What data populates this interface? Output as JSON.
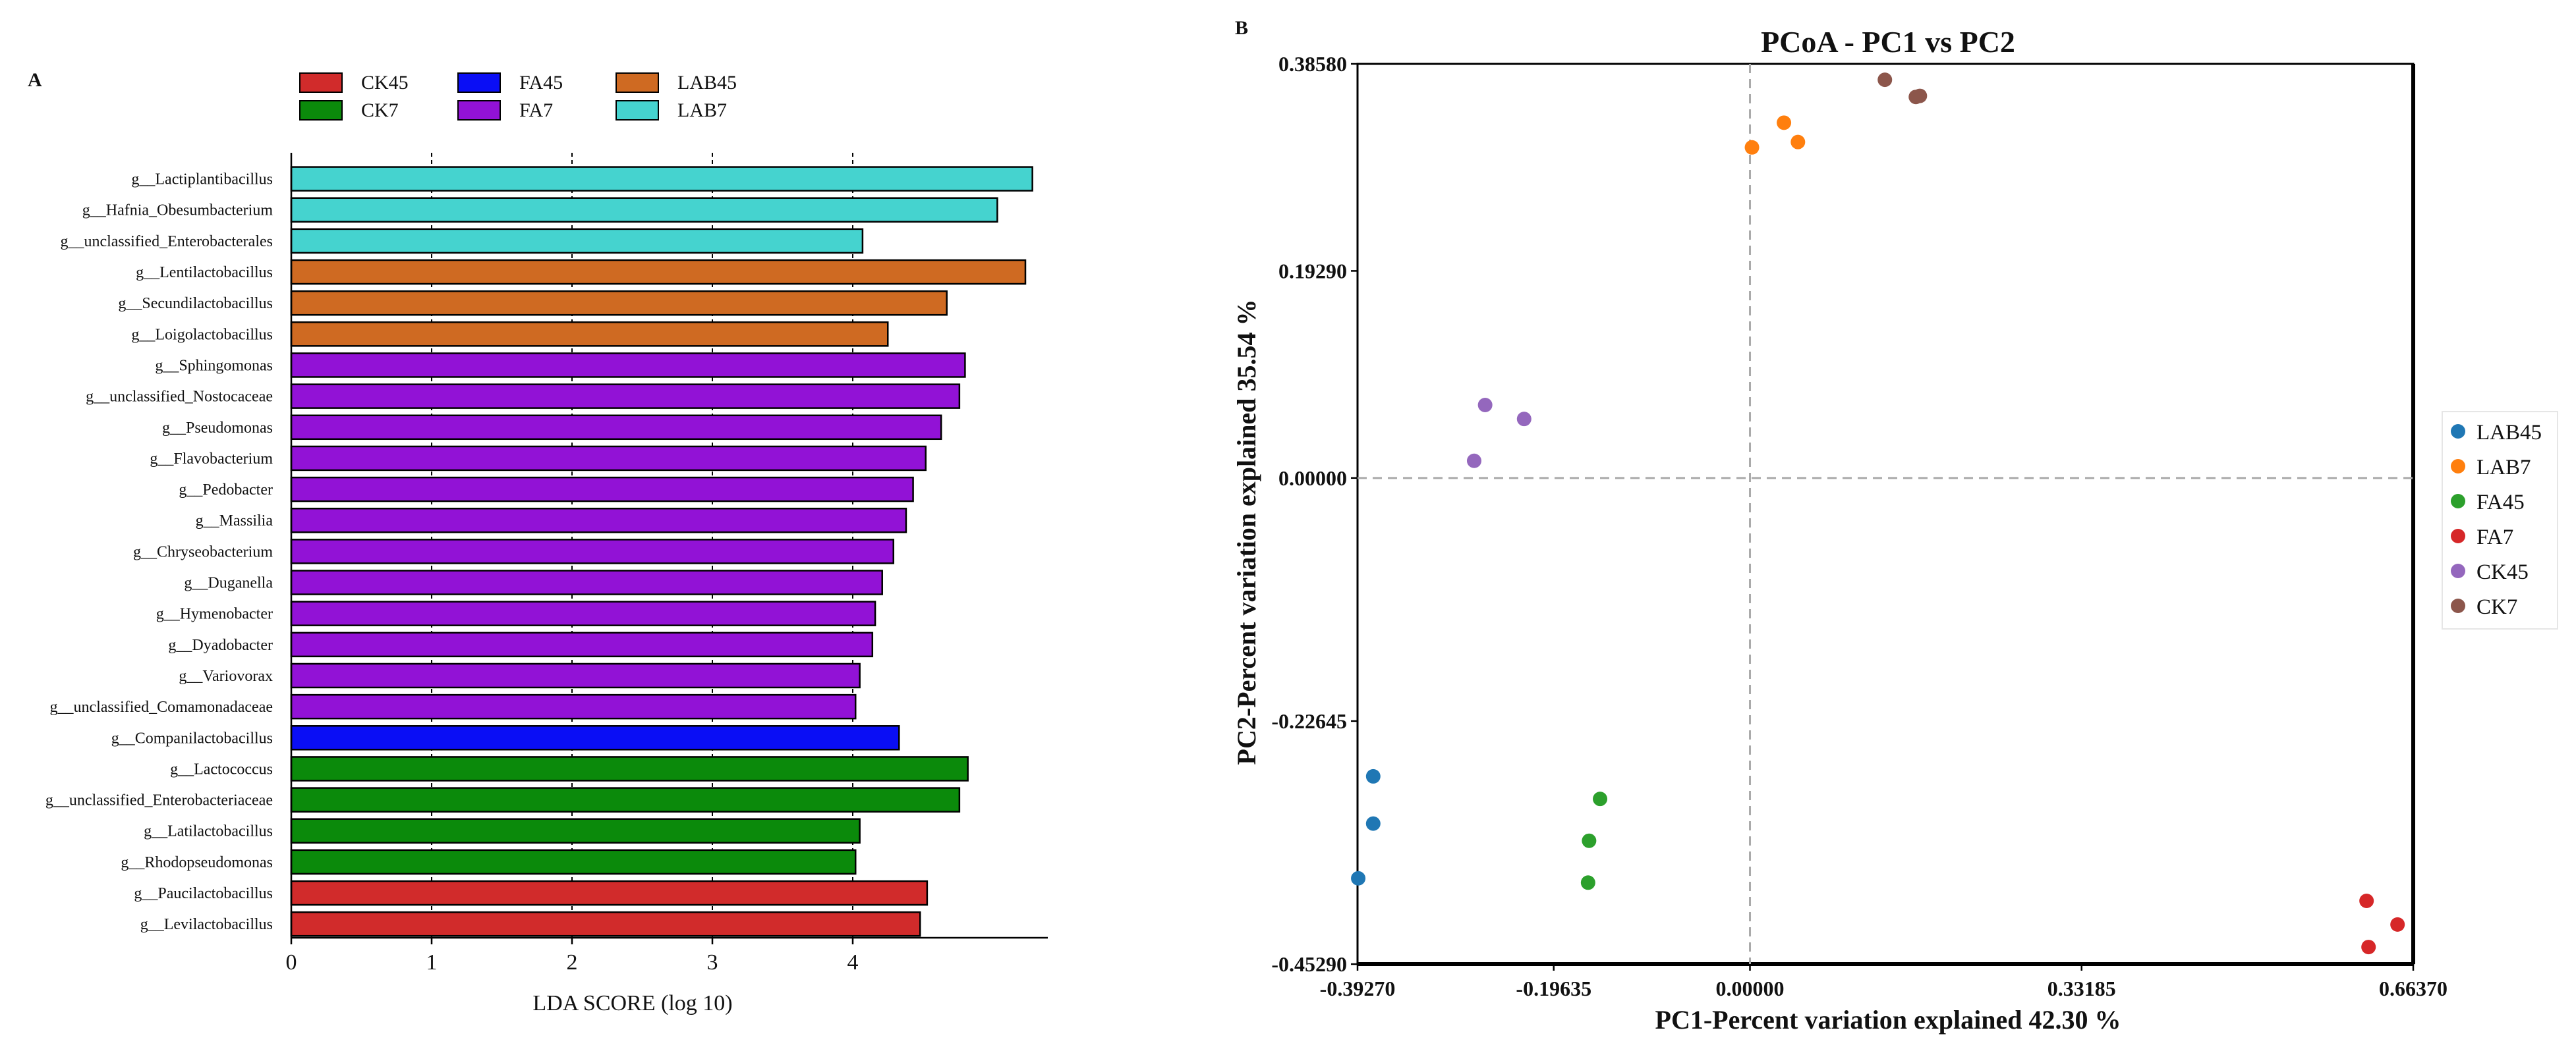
{
  "panel_a": {
    "label": "A",
    "legend": [
      {
        "name": "CK45",
        "color": "#d12b2b"
      },
      {
        "name": "FA45",
        "color": "#0a0ef5"
      },
      {
        "name": "LAB45",
        "color": "#cf6a22"
      },
      {
        "name": "CK7",
        "color": "#0b8a0b"
      },
      {
        "name": "FA7",
        "color": "#9212d6"
      },
      {
        "name": "LAB7",
        "color": "#45d3cf"
      }
    ]
  },
  "panel_b": {
    "label": "B",
    "legend": [
      {
        "name": "LAB45",
        "color": "#1f77b4"
      },
      {
        "name": "LAB7",
        "color": "#ff7f0e"
      },
      {
        "name": "FA45",
        "color": "#2ca02c"
      },
      {
        "name": "FA7",
        "color": "#d62728"
      },
      {
        "name": "CK45",
        "color": "#9467bd"
      },
      {
        "name": "CK7",
        "color": "#8c564b"
      }
    ]
  },
  "chart_data": [
    {
      "type": "bar",
      "orientation": "horizontal",
      "title": "",
      "xlabel": "LDA SCORE (log 10)",
      "ylabel": "",
      "xlim": [
        0,
        5.3
      ],
      "xticks": [
        0,
        1,
        2,
        3,
        4
      ],
      "grid": "vertical dashed at 1, 2, 3, 4",
      "categories": [
        "g__Lactiplantibacillus",
        "g__Hafnia_Obesumbacterium",
        "g__unclassified_Enterobacterales",
        "g__Lentilactobacillus",
        "g__Secundilactobacillus",
        "g__Loigolactobacillus",
        "g__Sphingomonas",
        "g__unclassified_Nostocaceae",
        "g__Pseudomonas",
        "g__Flavobacterium",
        "g__Pedobacter",
        "g__Massilia",
        "g__Chryseobacterium",
        "g__Duganella",
        "g__Hymenobacter",
        "g__Dyadobacter",
        "g__Variovorax",
        "g__unclassified_Comamonadaceae",
        "g__Companilactobacillus",
        "g__Lactococcus",
        "g__unclassified_Enterobacteriaceae",
        "g__Latilactobacillus",
        "g__Rhodopseudomonas",
        "g__Paucilactobacillus",
        "g__Levilactobacillus"
      ],
      "values": [
        5.28,
        5.03,
        4.07,
        5.23,
        4.67,
        4.25,
        4.8,
        4.76,
        4.63,
        4.52,
        4.43,
        4.38,
        4.29,
        4.21,
        4.16,
        4.14,
        4.05,
        4.02,
        4.33,
        4.82,
        4.76,
        4.05,
        4.02,
        4.53,
        4.48
      ],
      "groups": [
        "LAB7",
        "LAB7",
        "LAB7",
        "LAB45",
        "LAB45",
        "LAB45",
        "FA7",
        "FA7",
        "FA7",
        "FA7",
        "FA7",
        "FA7",
        "FA7",
        "FA7",
        "FA7",
        "FA7",
        "FA7",
        "FA7",
        "FA45",
        "CK7",
        "CK7",
        "CK7",
        "CK7",
        "CK45",
        "CK45"
      ]
    },
    {
      "type": "scatter",
      "title": "PCoA - PC1 vs PC2",
      "xlabel": "PC1-Percent variation explained 42.30 %",
      "ylabel": "PC2-Percent variation explained 35.54 %",
      "xlim": [
        -0.3927,
        0.6637
      ],
      "ylim": [
        -0.4529,
        0.3858
      ],
      "xticks": [
        "-0.39270",
        "-0.19635",
        "0.00000",
        "0.33185",
        "0.66370"
      ],
      "xtick_values": [
        -0.3927,
        -0.19635,
        0.0,
        0.33185,
        0.6637
      ],
      "yticks": [
        "0.38580",
        "0.19290",
        "0.00000",
        "-0.22645",
        "-0.45290"
      ],
      "ytick_values": [
        0.3858,
        0.1929,
        0.0,
        -0.22645,
        -0.4529
      ],
      "reference_lines": {
        "x": 0,
        "y": 0
      },
      "legend_position": "right",
      "series": [
        {
          "name": "LAB45",
          "points": [
            [
              -0.392,
              -0.373
            ],
            [
              -0.377,
              -0.322
            ],
            [
              -0.377,
              -0.278
            ]
          ]
        },
        {
          "name": "LAB7",
          "points": [
            [
              0.002,
              0.308
            ],
            [
              0.034,
              0.331
            ],
            [
              0.048,
              0.313
            ]
          ]
        },
        {
          "name": "FA45",
          "points": [
            [
              -0.162,
              -0.377
            ],
            [
              -0.161,
              -0.338
            ],
            [
              -0.15,
              -0.299
            ]
          ]
        },
        {
          "name": "FA7",
          "points": [
            [
              0.617,
              -0.394
            ],
            [
              0.648,
              -0.416
            ],
            [
              0.619,
              -0.437
            ]
          ]
        },
        {
          "name": "CK45",
          "points": [
            [
              -0.265,
              0.068
            ],
            [
              -0.226,
              0.055
            ],
            [
              -0.276,
              0.016
            ]
          ]
        },
        {
          "name": "CK7",
          "points": [
            [
              0.135,
              0.371
            ],
            [
              0.166,
              0.355
            ],
            [
              0.17,
              0.356
            ]
          ]
        }
      ]
    }
  ]
}
